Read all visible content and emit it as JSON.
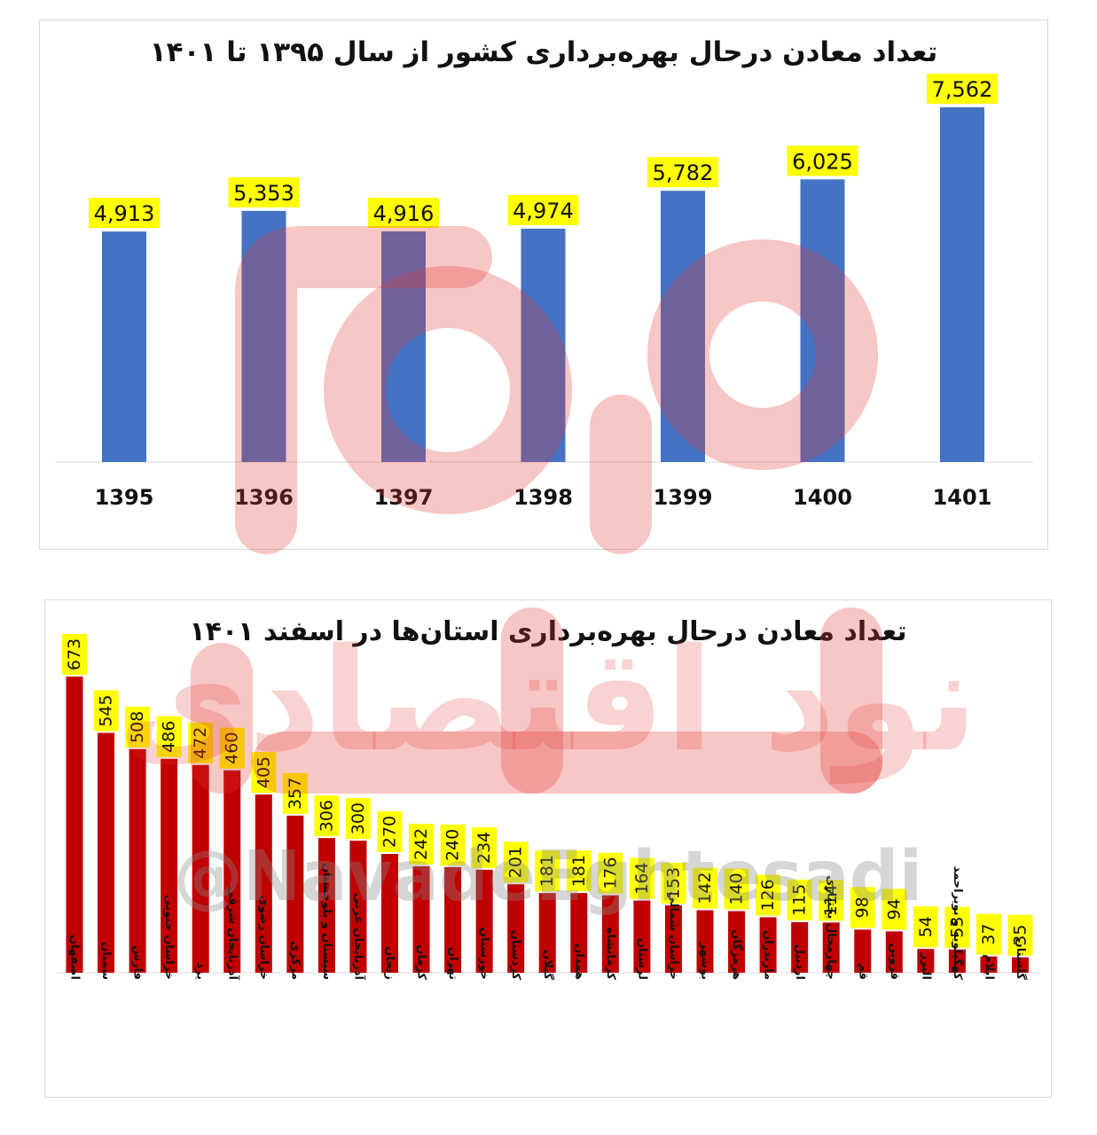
{
  "chart_data": [
    {
      "type": "bar",
      "title": "تعداد معادن درحال بهره‌برداری کشور از سال ۱۳۹۵ تا ۱۴۰۱",
      "categories": [
        "1395",
        "1396",
        "1397",
        "1398",
        "1399",
        "1400",
        "1401"
      ],
      "values": [
        4913,
        5353,
        4916,
        4974,
        5782,
        6025,
        7562
      ],
      "value_labels": [
        "4,913",
        "5,353",
        "4,916",
        "4,974",
        "5,782",
        "6,025",
        "7,562"
      ],
      "bar_color": "#4472c4",
      "label_bg": "#ffff00",
      "grid": false,
      "legend": "none"
    },
    {
      "type": "bar",
      "title": "تعداد معادن درحال بهره‌برداری استان‌ها در اسفند ۱۴۰۱",
      "categories": [
        "اصفهان",
        "سمنان",
        "فارس",
        "خراسان جنوبی",
        "یزد",
        "آذربایجان شرقی",
        "خراسان رضوی",
        "مرکزی",
        "سیستان و بلوچستان",
        "آذربایجان غربی",
        "زنجان",
        "کرمان",
        "تهران",
        "خوزستان",
        "کردستان",
        "گیلان",
        "همدان",
        "کرمانشاه",
        "لرستان",
        "خراسان شمالی",
        "بوشهر",
        "هرمزگان",
        "مازندران",
        "اردبیل",
        "چهارمحال بختیاری",
        "قم",
        "قزوین",
        "البرز",
        "کهگیلویه و بویراحمد",
        "ایلام",
        "گلستان"
      ],
      "values": [
        673,
        545,
        508,
        486,
        472,
        460,
        405,
        357,
        306,
        300,
        270,
        242,
        240,
        234,
        201,
        181,
        181,
        176,
        164,
        153,
        142,
        140,
        126,
        115,
        114,
        98,
        94,
        54,
        53,
        37,
        35
      ],
      "bar_color": "#c00000",
      "label_bg": "#ffff00",
      "grid": false,
      "legend": "none"
    }
  ],
  "watermark": {
    "logo_text": "نود اقتصادی",
    "handle": "@NavadeEghtesadi",
    "color": "#e3362f"
  }
}
